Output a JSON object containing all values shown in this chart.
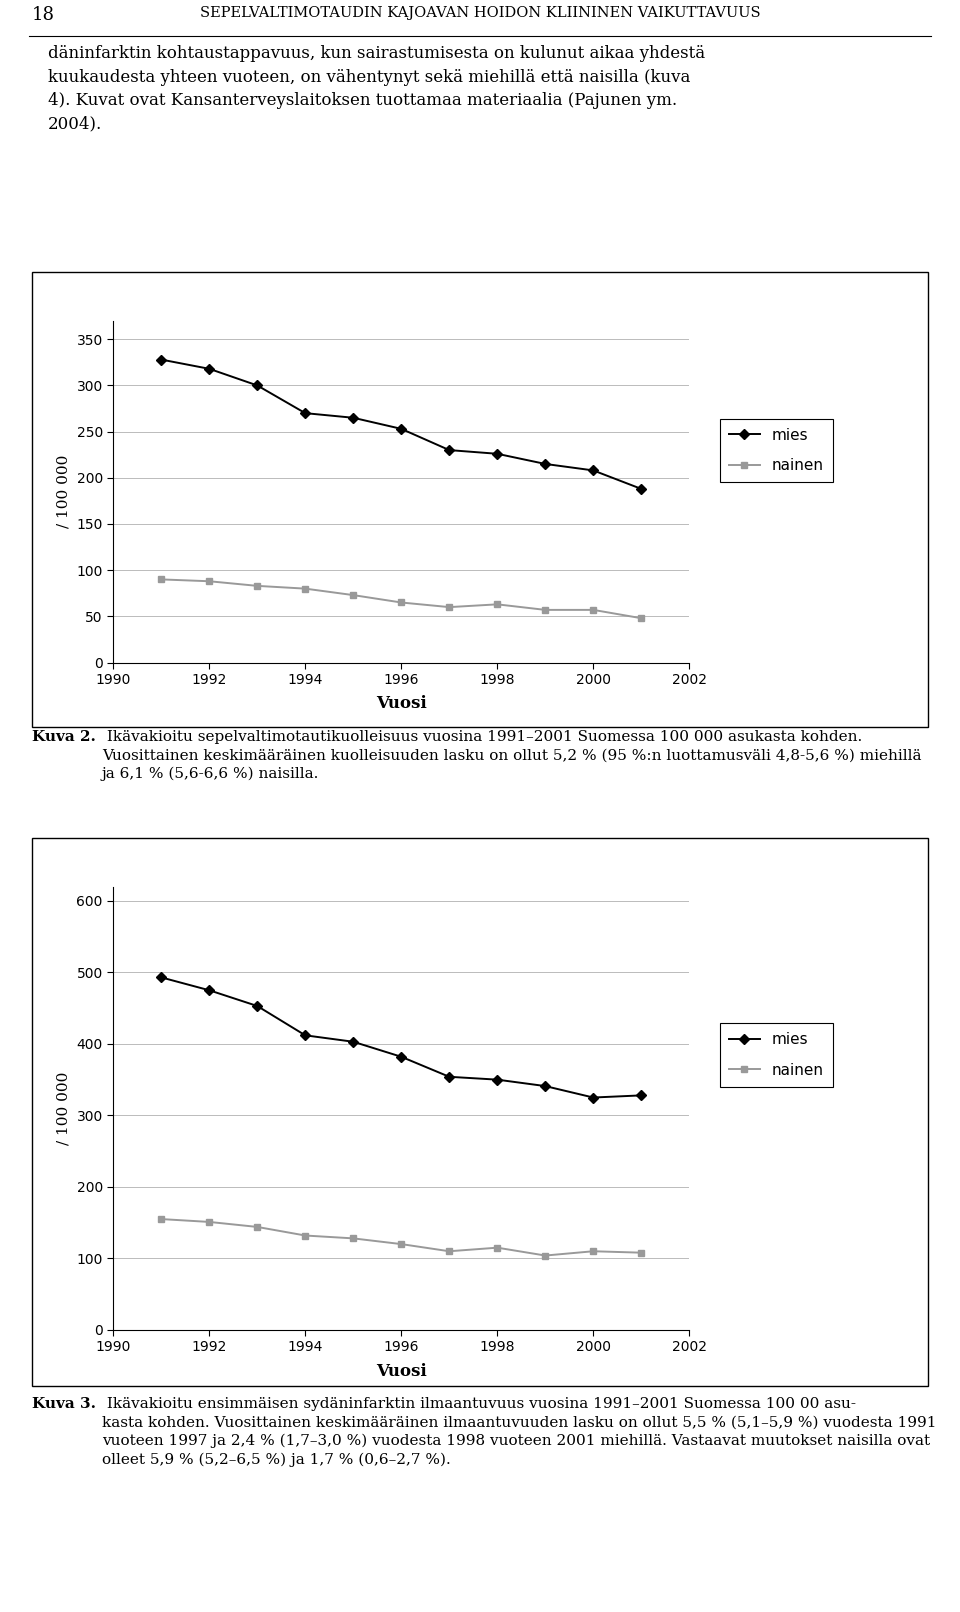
{
  "years": [
    1991,
    1992,
    1993,
    1994,
    1995,
    1996,
    1997,
    1998,
    1999,
    2000,
    2001
  ],
  "chart1": {
    "mies": [
      328,
      318,
      300,
      270,
      265,
      253,
      230,
      226,
      215,
      208,
      188
    ],
    "nainen": [
      90,
      88,
      83,
      80,
      73,
      65,
      60,
      63,
      57,
      57,
      48
    ],
    "ylabel": "/ 100 000",
    "xlabel": "Vuosi",
    "ylim": [
      0,
      370
    ],
    "yticks": [
      0,
      50,
      100,
      150,
      200,
      250,
      300,
      350
    ],
    "xticks": [
      1990,
      1992,
      1994,
      1996,
      1998,
      2000,
      2002
    ]
  },
  "chart2": {
    "mies": [
      493,
      475,
      453,
      412,
      403,
      382,
      354,
      350,
      341,
      325,
      328
    ],
    "nainen": [
      155,
      151,
      144,
      132,
      128,
      120,
      110,
      115,
      104,
      110,
      108
    ],
    "ylabel": "/ 100 000",
    "xlabel": "Vuosi",
    "ylim": [
      0,
      620
    ],
    "yticks": [
      0,
      100,
      200,
      300,
      400,
      500,
      600
    ],
    "xticks": [
      1990,
      1992,
      1994,
      1996,
      1998,
      2000,
      2002
    ]
  },
  "header_number": "18",
  "header_title": "Sepelvaltimotaudin kajoavan hoidon kliininen vaikuttavuus",
  "mies_color": "#000000",
  "nainen_color": "#999999",
  "bg_color": "#ffffff"
}
